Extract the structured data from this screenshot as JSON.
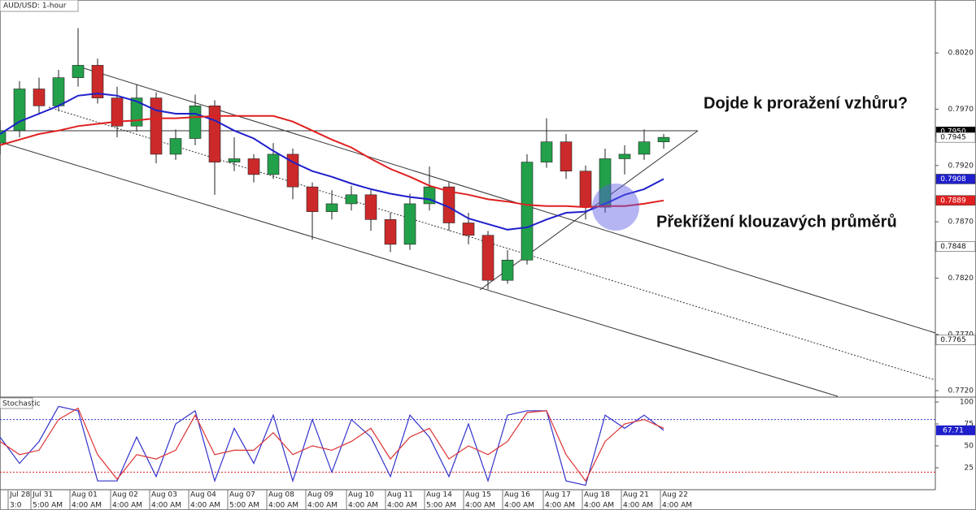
{
  "chart_data": [
    {
      "type": "candlestick",
      "title": "AUD/USD: 1-hour",
      "annotations": [
        "Dojde k proražení vzhůru?",
        "Překřížení klouzavých průměrů"
      ],
      "x": [
        0,
        12,
        24,
        36,
        48,
        60,
        72,
        84,
        96,
        108,
        120,
        132,
        144,
        156,
        168,
        180,
        192,
        204,
        216,
        228,
        240,
        252,
        264,
        276,
        288,
        300,
        312,
        324,
        336,
        348,
        360,
        372,
        384,
        396,
        408
      ],
      "open": [
        0.794,
        0.7951,
        0.7988,
        0.7973,
        0.7998,
        0.8009,
        0.798,
        0.7955,
        0.798,
        0.793,
        0.7944,
        0.7973,
        0.7923,
        0.7926,
        0.7912,
        0.793,
        0.7901,
        0.7879,
        0.7886,
        0.7894,
        0.7872,
        0.785,
        0.7886,
        0.7901,
        0.7869,
        0.7858,
        0.7818,
        0.7836,
        0.7923,
        0.7941,
        0.7915,
        0.7883,
        0.7926,
        0.793,
        0.7941
      ],
      "high": [
        0.796,
        0.7995,
        0.7998,
        0.8005,
        0.8042,
        0.8015,
        0.799,
        0.7992,
        0.7985,
        0.7952,
        0.7983,
        0.7978,
        0.7945,
        0.793,
        0.794,
        0.7935,
        0.7905,
        0.7898,
        0.7902,
        0.7898,
        0.7878,
        0.7895,
        0.7919,
        0.7905,
        0.7878,
        0.7862,
        0.7845,
        0.793,
        0.7962,
        0.7948,
        0.792,
        0.7935,
        0.7938,
        0.7952,
        0.7948
      ],
      "low": [
        0.793,
        0.7945,
        0.7965,
        0.7968,
        0.799,
        0.7975,
        0.7945,
        0.795,
        0.7922,
        0.7925,
        0.7938,
        0.7894,
        0.7915,
        0.7905,
        0.7908,
        0.789,
        0.7854,
        0.7872,
        0.788,
        0.7862,
        0.7843,
        0.7845,
        0.788,
        0.7862,
        0.785,
        0.781,
        0.7815,
        0.7832,
        0.7918,
        0.7908,
        0.7872,
        0.7878,
        0.7912,
        0.7925,
        0.7935
      ],
      "close": [
        0.7951,
        0.7988,
        0.7973,
        0.7998,
        0.8009,
        0.798,
        0.7955,
        0.798,
        0.793,
        0.7944,
        0.7973,
        0.7923,
        0.7926,
        0.7912,
        0.793,
        0.7901,
        0.7879,
        0.7886,
        0.7894,
        0.7872,
        0.785,
        0.7886,
        0.7901,
        0.7869,
        0.7858,
        0.7818,
        0.7836,
        0.7923,
        0.7941,
        0.7915,
        0.7883,
        0.7926,
        0.793,
        0.7941,
        0.7945
      ],
      "up_color": "#22a04a",
      "down_color": "#cc2a2a",
      "series": [
        {
          "color": "#1f1fcc",
          "values": [
            0.7948,
            0.7959,
            0.7966,
            0.7973,
            0.7982,
            0.7984,
            0.7982,
            0.7977,
            0.7969,
            0.7966,
            0.7966,
            0.796,
            0.7951,
            0.7944,
            0.7933,
            0.7923,
            0.7915,
            0.791,
            0.7904,
            0.7899,
            0.7895,
            0.7892,
            0.789,
            0.7883,
            0.7873,
            0.7868,
            0.7863,
            0.7865,
            0.7872,
            0.7878,
            0.7879,
            0.7886,
            0.7894,
            0.7899,
            0.7908
          ]
        },
        {
          "color": "#e02020",
          "values": [
            0.7938,
            0.7943,
            0.7948,
            0.7951,
            0.7955,
            0.7957,
            0.7959,
            0.796,
            0.7962,
            0.7962,
            0.7963,
            0.7964,
            0.7964,
            0.7964,
            0.7964,
            0.7959,
            0.7951,
            0.7943,
            0.7936,
            0.7926,
            0.7917,
            0.791,
            0.7902,
            0.7897,
            0.7894,
            0.789,
            0.7888,
            0.7885,
            0.7884,
            0.7884,
            0.7883,
            0.7884,
            0.7884,
            0.7886,
            0.7889
          ]
        }
      ],
      "xlim": [
        0,
        575
      ],
      "ylim": [
        0.7715,
        0.8067
      ],
      "yticks": [
        {
          "value": 0.802,
          "label": "0.8020"
        },
        {
          "value": 0.797,
          "label": "0.7970"
        },
        {
          "value": 0.792,
          "label": "0.7920"
        },
        {
          "value": 0.787,
          "label": "0.7870"
        },
        {
          "value": 0.782,
          "label": "0.7820"
        },
        {
          "value": 0.777,
          "label": "0.7770"
        },
        {
          "value": 0.772,
          "label": "0.7720"
        }
      ],
      "price_markers": [
        {
          "value": 0.795,
          "label": "0.7950",
          "color": "#000000"
        },
        {
          "value": 0.7945,
          "color": "#ffffff"
        },
        {
          "value": 0.7908,
          "color": "#1f1fcc"
        },
        {
          "value": 0.7889,
          "color": "#e02020"
        },
        {
          "value": 0.7848,
          "color": "#ffffff"
        },
        {
          "value": 0.7765,
          "color": "#ffffff"
        }
      ]
    },
    {
      "type": "line",
      "title": "Stochastic",
      "x": [
        0,
        12,
        24,
        36,
        48,
        60,
        72,
        84,
        96,
        108,
        120,
        132,
        144,
        156,
        168,
        180,
        192,
        204,
        216,
        228,
        240,
        252,
        264,
        276,
        288,
        300,
        312,
        324,
        336,
        348,
        360,
        372,
        384,
        396,
        408
      ],
      "series": [
        {
          "color": "#3333cc",
          "values": [
            60,
            30,
            55,
            95,
            90,
            10,
            10,
            60,
            15,
            75,
            90,
            10,
            70,
            30,
            85,
            10,
            80,
            20,
            80,
            60,
            15,
            85,
            60,
            15,
            75,
            10,
            85,
            90,
            90,
            10,
            5,
            85,
            70,
            85,
            67.71
          ]
        },
        {
          "color": "#dd3333",
          "values": [
            55,
            40,
            45,
            80,
            93,
            40,
            12,
            40,
            35,
            45,
            85,
            40,
            45,
            45,
            65,
            40,
            50,
            45,
            55,
            70,
            35,
            60,
            70,
            35,
            50,
            40,
            55,
            88,
            90,
            40,
            10,
            55,
            75,
            80,
            70
          ]
        }
      ],
      "levels": [
        80,
        20
      ],
      "xlim": [
        0,
        575
      ],
      "ylim": [
        0,
        100
      ],
      "yticks": [
        100,
        75,
        50,
        25
      ],
      "value_marker": {
        "value": 67.71,
        "color": "#1f1fcc"
      },
      "xticks": [
        {
          "value": 5,
          "label": "Jul 28"
        },
        {
          "value": 19,
          "label": "Jul 31"
        },
        {
          "value": 43,
          "label": "Aug 01"
        },
        {
          "value": 68,
          "label": "Aug 02"
        },
        {
          "value": 92,
          "label": "Aug 03"
        },
        {
          "value": 116,
          "label": "Aug 04"
        },
        {
          "value": 140,
          "label": "Aug 07"
        },
        {
          "value": 164,
          "label": "Aug 08"
        },
        {
          "value": 188,
          "label": "Aug 09"
        },
        {
          "value": 213,
          "label": "Aug 10"
        },
        {
          "value": 237,
          "label": "Aug 11"
        },
        {
          "value": 261,
          "label": "Aug 14"
        },
        {
          "value": 285,
          "label": "Aug 15"
        },
        {
          "value": 309,
          "label": "Aug 16"
        },
        {
          "value": 334,
          "label": "Aug 17"
        },
        {
          "value": 358,
          "label": "Aug 18"
        },
        {
          "value": 382,
          "label": "Aug 21"
        },
        {
          "value": 406,
          "label": "Aug 22"
        }
      ],
      "xtick_times": [
        "3:0",
        "5:00 AM",
        "4:00 AM",
        "4:00 AM",
        "4:00 AM",
        "4:00 AM",
        "5:00 AM",
        "4:00 AM",
        "4:00 AM",
        "4:00 AM",
        "4:00 AM",
        "5:00 AM",
        "4:00 AM",
        "4:00 AM",
        "4:00 AM",
        "4:00 AM",
        "4:00 AM",
        "4:00 AM"
      ]
    }
  ]
}
